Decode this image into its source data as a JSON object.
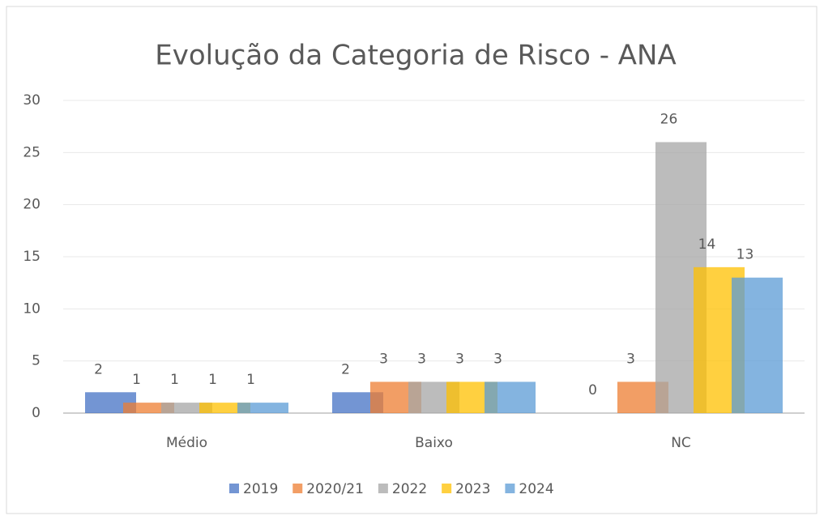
{
  "chart_data": {
    "type": "bar",
    "title": "Evolução da Categoria de Risco - ANA",
    "categories": [
      "Médio",
      "Baixo",
      "NC"
    ],
    "series": [
      {
        "name": "2019",
        "color": "#4472c4",
        "values": [
          2,
          2,
          0
        ]
      },
      {
        "name": "2020/21",
        "color": "#ed7d31",
        "values": [
          1,
          3,
          3
        ]
      },
      {
        "name": "2022",
        "color": "#a5a5a5",
        "values": [
          1,
          3,
          26
        ]
      },
      {
        "name": "2023",
        "color": "#ffc000",
        "values": [
          1,
          3,
          14
        ]
      },
      {
        "name": "2024",
        "color": "#5b9bd5",
        "values": [
          1,
          3,
          13
        ]
      }
    ],
    "ylim": [
      0,
      30
    ],
    "yticks": [
      0,
      5,
      10,
      15,
      20,
      25,
      30
    ],
    "grid": true,
    "legend": "bottom"
  }
}
